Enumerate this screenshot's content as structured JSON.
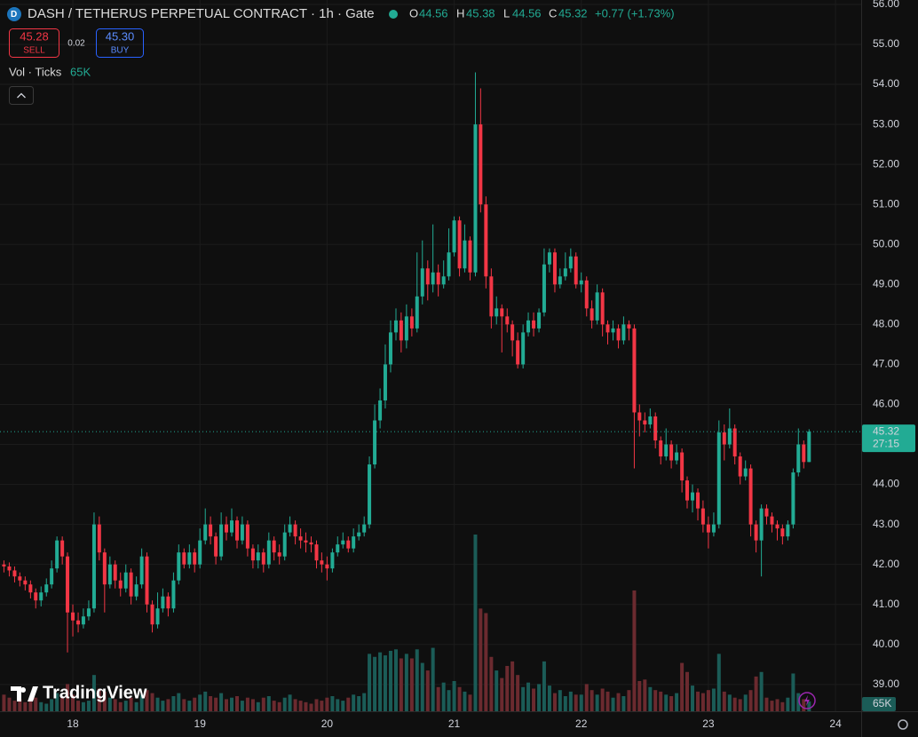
{
  "chart_data": {
    "type": "candlestick",
    "title": "DASH / TETHERUS PERPETUAL CONTRACT · 1h · Gate",
    "ohlc_labels": {
      "open": "O",
      "high": "H",
      "low": "L",
      "close": "C"
    },
    "change": "+0.77 (+1.73%)",
    "sell_price": "45.28",
    "sell_label": "SELL",
    "spread": "0.02",
    "buy_price": "45.30",
    "buy_label": "BUY",
    "volume_title": "Vol · Ticks",
    "volume_last_label": "65K",
    "countdown": "27:15",
    "brand": "TradingView",
    "up_color": "#22ab94",
    "down_color": "#f23645",
    "volume_up_color": "#1b5c57",
    "volume_down_color": "#6b2a2f",
    "grid": true,
    "xlim": [
      17.427,
      24.202
    ],
    "xticks": [
      18,
      19,
      20,
      21,
      22,
      23,
      24
    ],
    "ylim": [
      38.33,
      56.11
    ],
    "yticks": [
      {
        "value": 39,
        "label": "39.00"
      },
      {
        "value": 40,
        "label": "40.00"
      },
      {
        "value": 41,
        "label": "41.00"
      },
      {
        "value": 42,
        "label": "42.00"
      },
      {
        "value": 43,
        "label": "43.00"
      },
      {
        "value": 44,
        "label": "44.00"
      },
      {
        "value": 45,
        "label": "45.00"
      },
      {
        "value": 46,
        "label": "46.00"
      },
      {
        "value": 47,
        "label": "47.00"
      },
      {
        "value": 48,
        "label": "48.00"
      },
      {
        "value": 49,
        "label": "49.00"
      },
      {
        "value": 50,
        "label": "50.00"
      },
      {
        "value": 51,
        "label": "51.00"
      },
      {
        "value": 52,
        "label": "52.00"
      },
      {
        "value": 53,
        "label": "53.00"
      },
      {
        "value": 54,
        "label": "54.00"
      },
      {
        "value": 55,
        "label": "55.00"
      },
      {
        "value": 56,
        "label": "56.00"
      }
    ],
    "x": [
      17.458,
      17.5,
      17.542,
      17.583,
      17.625,
      17.667,
      17.708,
      17.75,
      17.792,
      17.833,
      17.875,
      17.917,
      17.958,
      18,
      18.042,
      18.083,
      18.125,
      18.167,
      18.208,
      18.25,
      18.292,
      18.333,
      18.375,
      18.417,
      18.458,
      18.5,
      18.542,
      18.583,
      18.625,
      18.667,
      18.708,
      18.75,
      18.792,
      18.833,
      18.875,
      18.917,
      18.958,
      19,
      19.042,
      19.083,
      19.125,
      19.167,
      19.208,
      19.25,
      19.292,
      19.333,
      19.375,
      19.417,
      19.458,
      19.5,
      19.542,
      19.583,
      19.625,
      19.667,
      19.708,
      19.75,
      19.792,
      19.833,
      19.875,
      19.917,
      19.958,
      20,
      20.042,
      20.083,
      20.125,
      20.167,
      20.208,
      20.25,
      20.292,
      20.333,
      20.375,
      20.417,
      20.458,
      20.5,
      20.542,
      20.583,
      20.625,
      20.667,
      20.708,
      20.75,
      20.792,
      20.833,
      20.875,
      20.917,
      20.958,
      21,
      21.042,
      21.083,
      21.125,
      21.167,
      21.208,
      21.25,
      21.292,
      21.333,
      21.375,
      21.417,
      21.458,
      21.5,
      21.542,
      21.583,
      21.625,
      21.667,
      21.708,
      21.75,
      21.792,
      21.833,
      21.875,
      21.917,
      21.958,
      22,
      22.042,
      22.083,
      22.125,
      22.167,
      22.208,
      22.25,
      22.292,
      22.333,
      22.375,
      22.417,
      22.458,
      22.5,
      22.542,
      22.583,
      22.625,
      22.667,
      22.708,
      22.75,
      22.792,
      22.833,
      22.875,
      22.917,
      22.958,
      23,
      23.042,
      23.083,
      23.125,
      23.167,
      23.208,
      23.25,
      23.292,
      23.333,
      23.375,
      23.417,
      23.458,
      23.5,
      23.542,
      23.583,
      23.625,
      23.667,
      23.708,
      23.75,
      23.792
    ],
    "open": [
      42.0,
      41.95,
      41.85,
      41.7,
      41.6,
      41.5,
      41.3,
      41.1,
      41.3,
      41.5,
      41.9,
      42.6,
      42.2,
      40.8,
      40.6,
      40.5,
      40.7,
      40.9,
      43.0,
      42.3,
      41.5,
      42.0,
      41.6,
      41.4,
      41.8,
      41.2,
      41.5,
      42.2,
      41.0,
      40.5,
      40.9,
      41.2,
      40.9,
      41.6,
      42.3,
      42.0,
      42.3,
      42.0,
      42.6,
      43.0,
      42.7,
      42.2,
      43.0,
      42.8,
      43.1,
      42.6,
      43.0,
      42.4,
      42.1,
      42.3,
      42.0,
      42.6,
      42.3,
      42.2,
      42.8,
      43.0,
      42.7,
      42.6,
      42.55,
      42.5,
      42.1,
      42.0,
      41.9,
      42.3,
      42.5,
      42.6,
      42.4,
      42.7,
      42.8,
      43.0,
      44.5,
      45.6,
      46.1,
      47.0,
      47.8,
      48.1,
      47.6,
      48.2,
      47.9,
      48.7,
      49.4,
      49.0,
      49.3,
      49.0,
      49.2,
      49.8,
      50.6,
      49.4,
      50.1,
      49.3,
      53.0,
      51.0,
      49.2,
      48.2,
      48.4,
      48.2,
      48.0,
      47.6,
      47.0,
      47.8,
      48.1,
      47.9,
      48.3,
      49.5,
      49.8,
      49.0,
      49.2,
      49.4,
      49.7,
      49.0,
      49.1,
      48.4,
      48.1,
      48.8,
      48.0,
      47.8,
      47.9,
      47.6,
      48.0,
      47.9,
      45.8,
      45.6,
      45.5,
      45.7,
      45.1,
      44.7,
      45.0,
      44.6,
      44.8,
      44.1,
      43.6,
      43.8,
      43.4,
      43.0,
      42.8,
      43.0,
      45.3,
      45.0,
      45.4,
      44.7,
      44.2,
      44.4,
      43.0,
      42.6,
      43.4,
      43.2,
      43.0,
      42.9,
      42.7,
      43.0,
      44.3,
      45.0,
      44.56
    ],
    "high": [
      42.1,
      42.05,
      41.95,
      41.8,
      41.7,
      41.6,
      41.4,
      41.45,
      41.65,
      42.1,
      42.7,
      42.7,
      42.3,
      41.0,
      40.8,
      40.9,
      41.1,
      43.3,
      43.2,
      42.4,
      42.2,
      42.1,
      41.8,
      42.0,
      41.9,
      41.7,
      42.4,
      42.3,
      41.1,
      41.3,
      41.4,
      41.3,
      41.8,
      42.5,
      42.4,
      42.5,
      42.4,
      42.9,
      43.4,
      43.2,
      42.8,
      43.3,
      43.2,
      43.4,
      43.2,
      43.2,
      43.1,
      42.5,
      42.5,
      42.4,
      42.8,
      42.7,
      42.5,
      43.0,
      43.2,
      43.1,
      42.9,
      42.8,
      42.7,
      42.6,
      42.3,
      42.2,
      42.4,
      42.7,
      42.8,
      42.7,
      42.9,
      43.0,
      43.2,
      44.7,
      46.0,
      46.4,
      47.5,
      48.1,
      48.4,
      48.3,
      48.5,
      48.4,
      49.8,
      50.1,
      49.6,
      50.5,
      49.5,
      49.6,
      50.4,
      50.7,
      50.7,
      50.5,
      50.2,
      54.3,
      53.9,
      51.2,
      49.4,
      48.7,
      48.5,
      48.4,
      48.1,
      47.8,
      48.0,
      48.3,
      48.3,
      48.4,
      49.9,
      49.9,
      49.9,
      49.4,
      49.8,
      49.9,
      49.8,
      49.3,
      49.2,
      48.6,
      49.0,
      48.9,
      48.1,
      48.1,
      48.0,
      48.2,
      48.1,
      48.0,
      46.0,
      45.8,
      45.9,
      45.8,
      45.2,
      45.4,
      45.1,
      45.0,
      44.9,
      44.2,
      44.0,
      43.9,
      43.6,
      43.2,
      43.3,
      45.6,
      45.5,
      45.9,
      45.5,
      44.8,
      44.6,
      44.5,
      43.1,
      43.5,
      43.5,
      43.3,
      43.1,
      43.0,
      43.1,
      44.4,
      45.4,
      45.1,
      45.38
    ],
    "low": [
      41.8,
      41.7,
      41.55,
      41.45,
      41.35,
      41.15,
      40.9,
      40.95,
      41.2,
      41.4,
      41.8,
      42.0,
      39.8,
      40.2,
      40.3,
      40.4,
      40.6,
      40.8,
      42.1,
      40.8,
      41.4,
      41.4,
      41.2,
      41.3,
      41.0,
      41.1,
      41.4,
      40.8,
      40.3,
      40.4,
      40.8,
      40.7,
      40.8,
      41.5,
      41.9,
      41.9,
      41.8,
      41.9,
      42.5,
      42.5,
      42.0,
      42.1,
      42.6,
      42.7,
      42.4,
      42.5,
      42.2,
      41.9,
      41.9,
      41.8,
      41.9,
      42.1,
      42.0,
      42.1,
      42.7,
      42.5,
      42.4,
      42.3,
      42.3,
      41.9,
      41.8,
      41.6,
      41.8,
      42.2,
      42.4,
      42.3,
      42.3,
      42.6,
      42.7,
      42.9,
      44.4,
      45.4,
      45.9,
      46.8,
      47.6,
      47.3,
      47.4,
      47.7,
      47.8,
      48.5,
      48.6,
      48.8,
      48.7,
      48.9,
      49.1,
      49.7,
      49.2,
      49.3,
      49.1,
      49.2,
      50.8,
      48.9,
      47.9,
      48.0,
      47.3,
      47.8,
      47.2,
      46.9,
      46.9,
      47.7,
      47.7,
      47.8,
      48.2,
      49.3,
      48.8,
      48.9,
      49.1,
      49.3,
      48.9,
      48.8,
      48.2,
      47.9,
      48.0,
      47.7,
      47.5,
      47.6,
      47.4,
      47.5,
      47.6,
      44.4,
      45.2,
      45.3,
      45.4,
      44.9,
      44.5,
      44.6,
      44.4,
      44.5,
      43.8,
      43.4,
      43.3,
      43.1,
      42.8,
      42.4,
      42.7,
      42.9,
      44.6,
      44.9,
      44.5,
      44.0,
      44.1,
      42.7,
      42.3,
      41.7,
      43.0,
      42.8,
      42.6,
      42.5,
      42.6,
      42.9,
      44.2,
      44.4,
      44.56
    ],
    "close": [
      41.95,
      41.85,
      41.7,
      41.6,
      41.5,
      41.3,
      41.1,
      41.3,
      41.5,
      41.9,
      42.6,
      42.2,
      40.8,
      40.6,
      40.5,
      40.7,
      40.9,
      43.0,
      42.3,
      41.5,
      42.0,
      41.6,
      41.4,
      41.8,
      41.2,
      41.5,
      42.2,
      41.0,
      40.5,
      40.9,
      41.2,
      40.9,
      41.6,
      42.3,
      42.0,
      42.3,
      42.0,
      42.6,
      43.0,
      42.7,
      42.2,
      43.0,
      42.8,
      43.1,
      42.6,
      43.0,
      42.4,
      42.1,
      42.3,
      42.0,
      42.6,
      42.3,
      42.2,
      42.8,
      43.0,
      42.7,
      42.6,
      42.55,
      42.5,
      42.1,
      42.0,
      41.9,
      42.3,
      42.5,
      42.6,
      42.4,
      42.7,
      42.8,
      43.0,
      44.5,
      45.6,
      46.1,
      47.0,
      47.8,
      48.1,
      47.6,
      48.2,
      47.9,
      48.7,
      49.4,
      49.0,
      49.3,
      49.0,
      49.2,
      49.8,
      50.6,
      49.4,
      50.1,
      49.3,
      53.0,
      51.0,
      49.2,
      48.2,
      48.4,
      48.2,
      48.0,
      47.6,
      47.0,
      47.8,
      48.1,
      47.9,
      48.3,
      49.5,
      49.8,
      49.0,
      49.2,
      49.4,
      49.7,
      49.0,
      49.1,
      48.4,
      48.1,
      48.8,
      48.0,
      47.8,
      47.9,
      47.6,
      48.0,
      47.9,
      45.8,
      45.6,
      45.5,
      45.7,
      45.1,
      44.7,
      45.0,
      44.6,
      44.8,
      44.1,
      43.6,
      43.8,
      43.4,
      43.0,
      42.8,
      43.0,
      45.3,
      45.0,
      45.4,
      44.7,
      44.2,
      44.4,
      43.0,
      42.6,
      43.4,
      43.2,
      43.0,
      42.9,
      42.7,
      43.0,
      44.3,
      45.0,
      44.56,
      45.32
    ],
    "volume": [
      110000,
      90000,
      70000,
      80000,
      60000,
      70000,
      90000,
      60000,
      50000,
      80000,
      120000,
      90000,
      180000,
      110000,
      70000,
      60000,
      70000,
      240000,
      150000,
      130000,
      90000,
      80000,
      60000,
      70000,
      90000,
      60000,
      110000,
      140000,
      120000,
      90000,
      70000,
      80000,
      100000,
      120000,
      80000,
      70000,
      90000,
      110000,
      130000,
      100000,
      90000,
      120000,
      80000,
      90000,
      100000,
      70000,
      90000,
      80000,
      60000,
      90000,
      100000,
      70000,
      60000,
      90000,
      110000,
      80000,
      70000,
      60000,
      50000,
      80000,
      70000,
      90000,
      100000,
      80000,
      70000,
      90000,
      110000,
      100000,
      120000,
      380000,
      360000,
      390000,
      370000,
      400000,
      410000,
      350000,
      380000,
      350000,
      410000,
      320000,
      270000,
      420000,
      160000,
      190000,
      140000,
      200000,
      160000,
      130000,
      110000,
      1170000,
      680000,
      650000,
      360000,
      270000,
      220000,
      300000,
      330000,
      240000,
      160000,
      190000,
      150000,
      180000,
      330000,
      170000,
      120000,
      140000,
      100000,
      130000,
      110000,
      110000,
      180000,
      140000,
      110000,
      150000,
      130000,
      90000,
      120000,
      100000,
      140000,
      800000,
      200000,
      210000,
      160000,
      140000,
      130000,
      110000,
      100000,
      120000,
      320000,
      260000,
      170000,
      130000,
      120000,
      140000,
      150000,
      380000,
      130000,
      110000,
      90000,
      80000,
      110000,
      140000,
      230000,
      260000,
      90000,
      70000,
      80000,
      60000,
      90000,
      250000,
      120000,
      80000,
      65000
    ]
  }
}
